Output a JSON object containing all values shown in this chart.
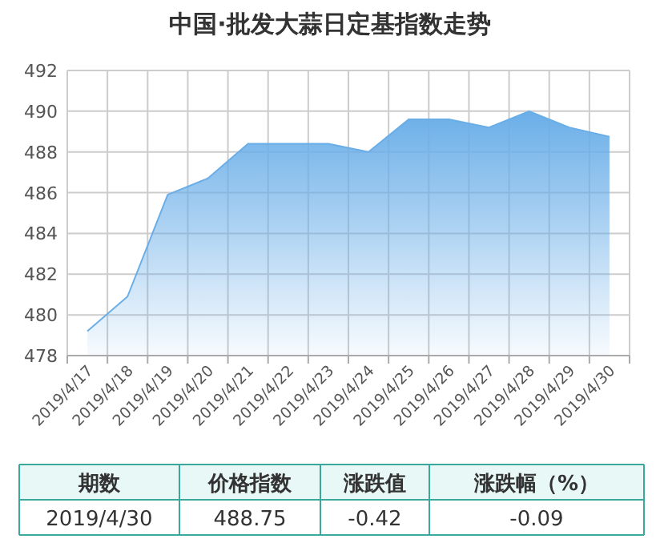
{
  "chart_data": {
    "type": "area",
    "title": "中国·批发大蒜日定基指数走势",
    "categories": [
      "2019/4/17",
      "2019/4/18",
      "2019/4/19",
      "2019/4/20",
      "2019/4/21",
      "2019/4/22",
      "2019/4/23",
      "2019/4/24",
      "2019/4/25",
      "2019/4/26",
      "2019/4/27",
      "2019/4/28",
      "2019/4/29",
      "2019/4/30"
    ],
    "series": [
      {
        "color": "#6aaee8",
        "values": [
          479.2,
          480.9,
          485.9,
          486.7,
          488.4,
          488.4,
          488.4,
          488.0,
          489.6,
          489.6,
          489.2,
          490.0,
          489.2,
          488.75
        ]
      }
    ],
    "ylim": [
      478,
      492
    ],
    "yticks": [
      478,
      480,
      482,
      484,
      486,
      488,
      490,
      492
    ],
    "grid": true,
    "annotations": [
      "期数",
      "价格指数",
      "涨跌值",
      "涨跌幅（%）",
      "2019/4/30",
      "488.75",
      "-0.42",
      "-0.09"
    ]
  }
}
